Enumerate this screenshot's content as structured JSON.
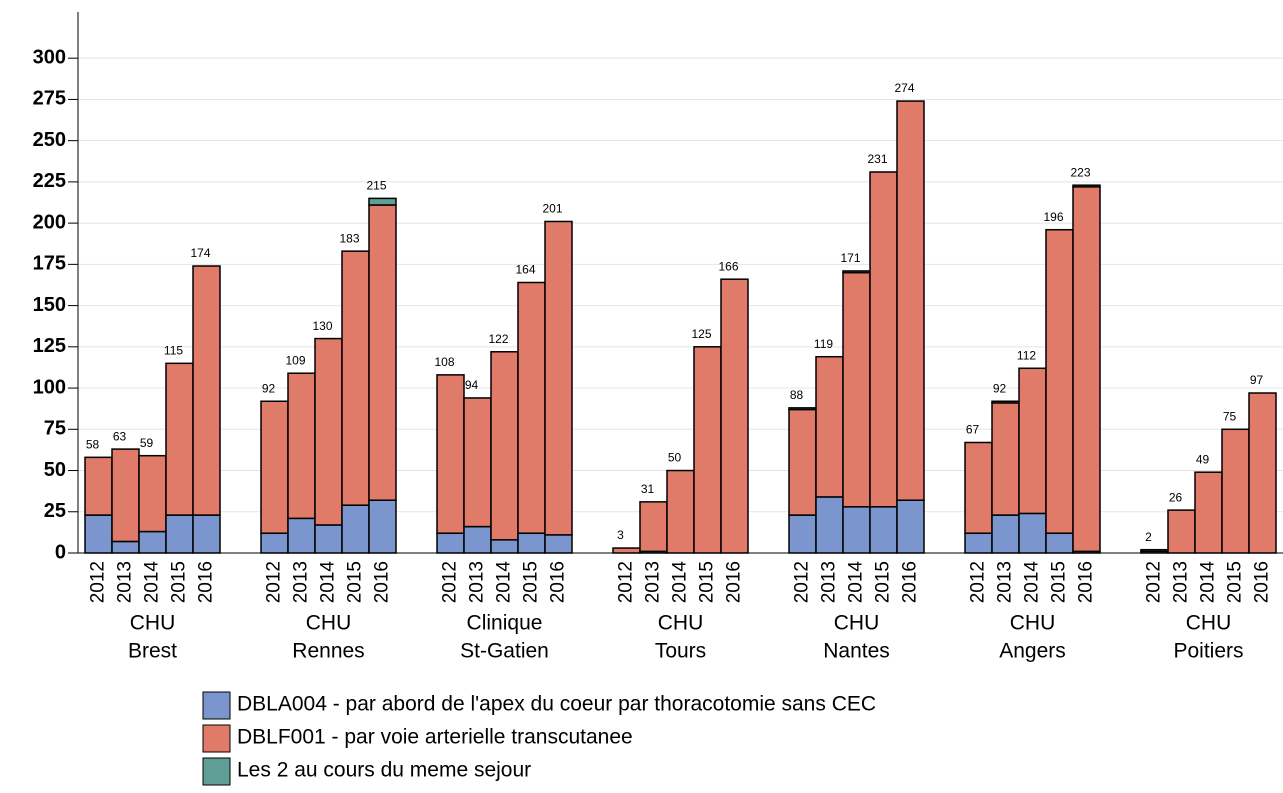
{
  "chart_data": {
    "type": "bar",
    "stacked": true,
    "categories": [
      "2012",
      "2013",
      "2014",
      "2015",
      "2016"
    ],
    "groups": [
      [
        "CHU",
        "Brest"
      ],
      [
        "CHU",
        "Rennes"
      ],
      [
        "Clinique",
        "St-Gatien"
      ],
      [
        "CHU",
        "Tours"
      ],
      [
        "CHU",
        "Nantes"
      ],
      [
        "CHU",
        "Angers"
      ],
      [
        "CHU",
        "Poitiers"
      ]
    ],
    "series": [
      {
        "name": "DBLA004 - par abord de l'apex du coeur par thoracotomie sans CEC",
        "color": "#7b96cf",
        "values": [
          [
            23,
            7,
            13,
            23,
            23
          ],
          [
            12,
            21,
            17,
            29,
            32
          ],
          [
            12,
            16,
            8,
            12,
            11
          ],
          [
            0,
            1,
            0,
            0,
            0
          ],
          [
            23,
            34,
            28,
            28,
            32
          ],
          [
            12,
            23,
            24,
            12,
            1
          ],
          [
            1,
            0,
            0,
            0,
            0
          ]
        ]
      },
      {
        "name": "DBLF001 - par voie arterielle transcutanee",
        "color": "#e07b6a",
        "values": [
          [
            35,
            56,
            46,
            92,
            151
          ],
          [
            80,
            88,
            113,
            154,
            179
          ],
          [
            96,
            78,
            114,
            152,
            190
          ],
          [
            3,
            30,
            50,
            125,
            166
          ],
          [
            64,
            85,
            142,
            203,
            242
          ],
          [
            55,
            68,
            88,
            184,
            221
          ],
          [
            1,
            26,
            49,
            75,
            97
          ]
        ]
      },
      {
        "name": "Les 2 au cours du meme sejour",
        "color": "#5f9f95",
        "values": [
          [
            0,
            0,
            0,
            0,
            0
          ],
          [
            0,
            0,
            0,
            0,
            4
          ],
          [
            0,
            0,
            0,
            0,
            0
          ],
          [
            0,
            0,
            0,
            0,
            0
          ],
          [
            1,
            0,
            1,
            0,
            0
          ],
          [
            0,
            1,
            0,
            0,
            1
          ],
          [
            0,
            0,
            0,
            0,
            0
          ]
        ]
      }
    ],
    "totals": [
      [
        58,
        63,
        59,
        115,
        174
      ],
      [
        92,
        109,
        130,
        183,
        215
      ],
      [
        108,
        94,
        122,
        164,
        201
      ],
      [
        3,
        31,
        50,
        125,
        166
      ],
      [
        88,
        119,
        171,
        231,
        274
      ],
      [
        67,
        92,
        112,
        196,
        223
      ],
      [
        2,
        26,
        49,
        75,
        97
      ]
    ],
    "ylim": [
      0,
      328
    ],
    "yticks": [
      0,
      25,
      50,
      75,
      100,
      125,
      150,
      175,
      200,
      225,
      250,
      275,
      300
    ],
    "grid": true
  }
}
